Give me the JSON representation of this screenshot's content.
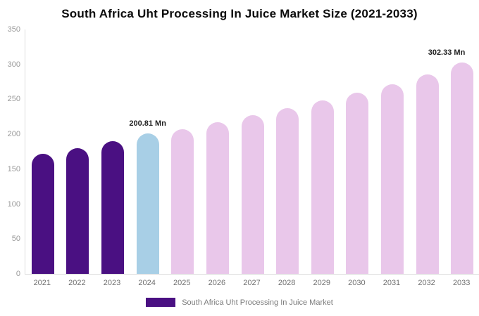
{
  "title": "South Africa Uht Processing In Juice Market Size (2021-2033)",
  "legend": {
    "label": "South Africa Uht Processing In Juice Market",
    "swatch_color": "#4a1082"
  },
  "colors": {
    "historical_bar": "#4a1082",
    "highlight_bar": "#a8cfe6",
    "forecast_bar": "#e9c7ea",
    "axis_tick_text": "#9a9a9a",
    "x_label_text": "#6f6f6f",
    "annotation_text": "#1f1f1f"
  },
  "chart_data": {
    "type": "bar",
    "title": "South Africa Uht Processing In Juice Market Size (2021-2033)",
    "categories": [
      "2021",
      "2022",
      "2023",
      "2024",
      "2025",
      "2026",
      "2027",
      "2028",
      "2029",
      "2030",
      "2031",
      "2032",
      "2033"
    ],
    "values": [
      172,
      180,
      190,
      200.81,
      207,
      217,
      227,
      237,
      248,
      260,
      272,
      286,
      302.33
    ],
    "unit": "Mn",
    "xlabel": "",
    "ylabel": "",
    "ylim": [
      0,
      350
    ],
    "yticks": [
      0,
      50,
      100,
      150,
      200,
      250,
      300,
      350
    ],
    "grid": false,
    "legend_position": "bottom",
    "bar_colors": [
      "#4a1082",
      "#4a1082",
      "#4a1082",
      "#a8cfe6",
      "#e9c7ea",
      "#e9c7ea",
      "#e9c7ea",
      "#e9c7ea",
      "#e9c7ea",
      "#e9c7ea",
      "#e9c7ea",
      "#e9c7ea",
      "#e9c7ea"
    ],
    "annotations": [
      {
        "category": "2024",
        "text": "200.81 Mn"
      },
      {
        "category": "2033",
        "text": "302.33 Mn"
      }
    ]
  }
}
